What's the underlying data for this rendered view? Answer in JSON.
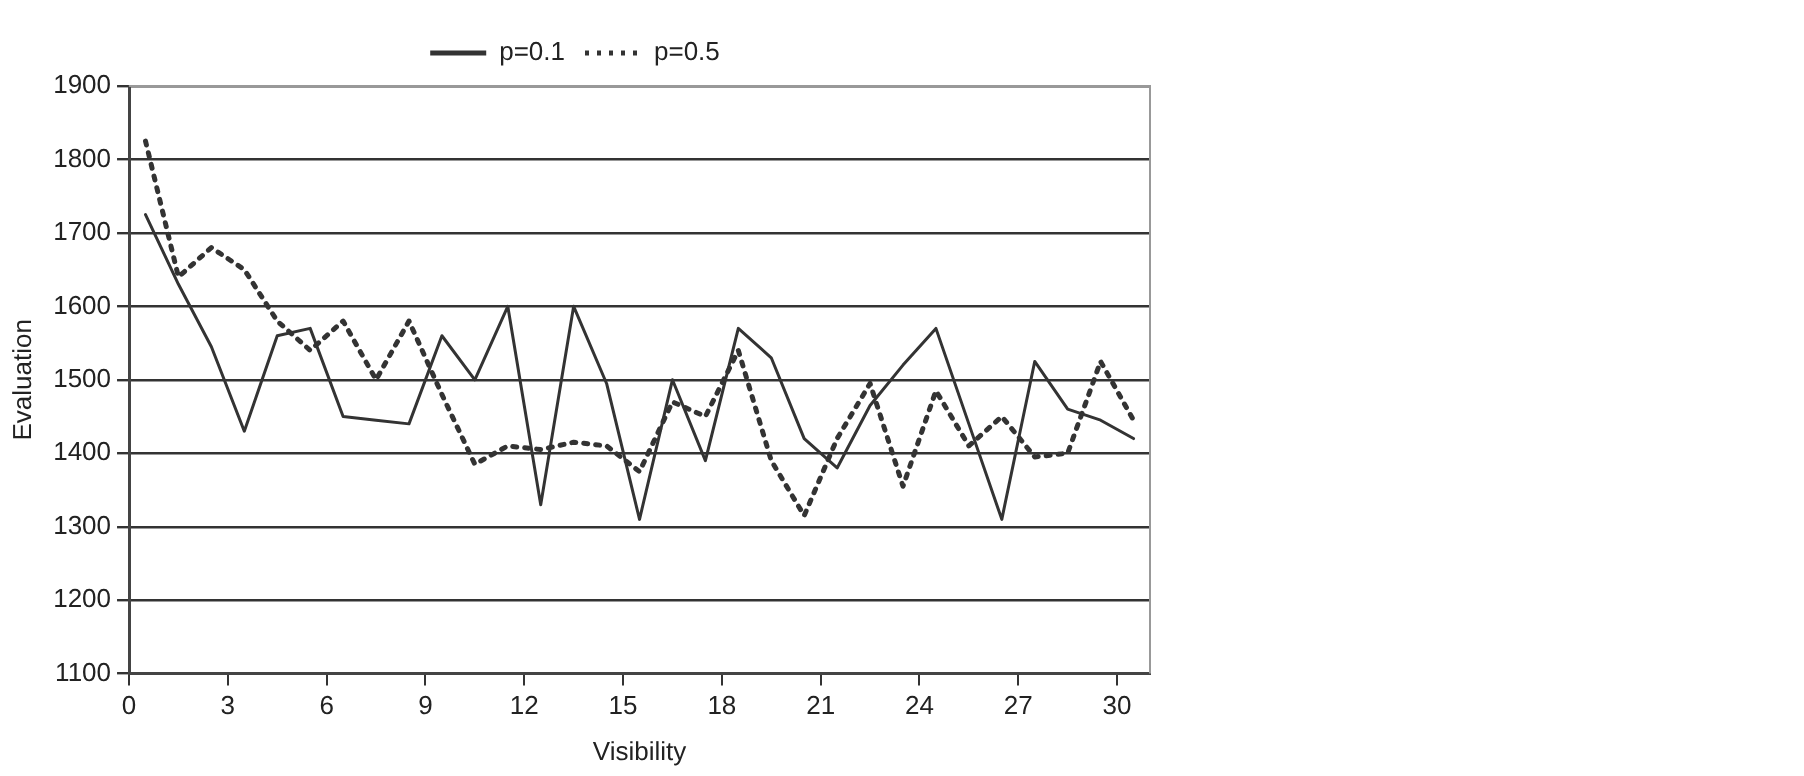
{
  "chart_data": {
    "type": "line",
    "xlabel": "Visibility",
    "ylabel": "Evaluation",
    "x": [
      0.5,
      1.5,
      2.5,
      3.5,
      4.5,
      5.5,
      6.5,
      7.5,
      8.5,
      9.5,
      10.5,
      11.5,
      12.5,
      13.5,
      14.5,
      15.5,
      16.5,
      17.5,
      18.5,
      19.5,
      20.5,
      21.5,
      22.5,
      23.5,
      24.5,
      25.5,
      26.5,
      27.5,
      28.5,
      29.5,
      30.5
    ],
    "series": [
      {
        "name": "p=0.1",
        "color": "#333333",
        "line_style": "solid",
        "values": [
          1725,
          1630,
          1545,
          1430,
          1560,
          1570,
          1450,
          1445,
          1440,
          1560,
          1500,
          1600,
          1330,
          1600,
          1495,
          1310,
          1500,
          1390,
          1570,
          1530,
          1420,
          1380,
          1465,
          1520,
          1570,
          1440,
          1310,
          1525,
          1460,
          1445,
          1420
        ]
      },
      {
        "name": "p=0.5",
        "color": "#333333",
        "line_style": "dotted",
        "values": [
          1825,
          1640,
          1680,
          1650,
          1580,
          1540,
          1580,
          1500,
          1580,
          1480,
          1385,
          1410,
          1405,
          1415,
          1410,
          1375,
          1470,
          1450,
          1540,
          1390,
          1315,
          1420,
          1495,
          1355,
          1485,
          1410,
          1450,
          1395,
          1400,
          1525,
          1445
        ]
      }
    ],
    "xlim": [
      0,
      31
    ],
    "xticks": [
      0,
      3,
      6,
      9,
      12,
      15,
      18,
      21,
      24,
      27,
      30
    ],
    "ylim": [
      1100,
      1900
    ],
    "yticks": [
      1100,
      1200,
      1300,
      1400,
      1500,
      1600,
      1700,
      1800,
      1900
    ],
    "grid": "y",
    "legend": "top",
    "marker": "none"
  }
}
